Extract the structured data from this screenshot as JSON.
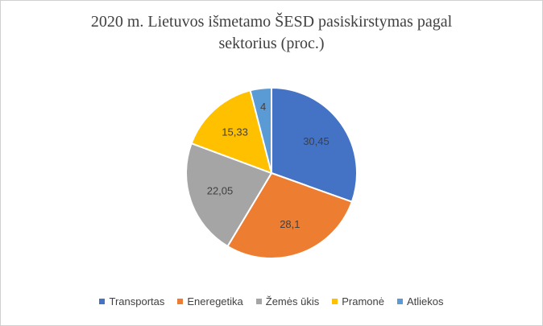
{
  "chart_data": {
    "type": "pie",
    "title_line1": "2020 m. Lietuvos išmetamo ŠESD pasiskirstymas pagal",
    "title_line2": "sektorius (proc.)",
    "categories": [
      "Transportas",
      "Eneregetika",
      "Žemės ūkis",
      "Pramonė",
      "Atliekos"
    ],
    "values": [
      30.45,
      28.1,
      22.05,
      15.33,
      4
    ],
    "data_labels": [
      "30,45",
      "28,1",
      "22,05",
      "15,33",
      "4"
    ],
    "colors": [
      "#4472c4",
      "#ed7d31",
      "#a5a5a5",
      "#ffc000",
      "#5b9bd5"
    ],
    "legend_position": "bottom"
  }
}
